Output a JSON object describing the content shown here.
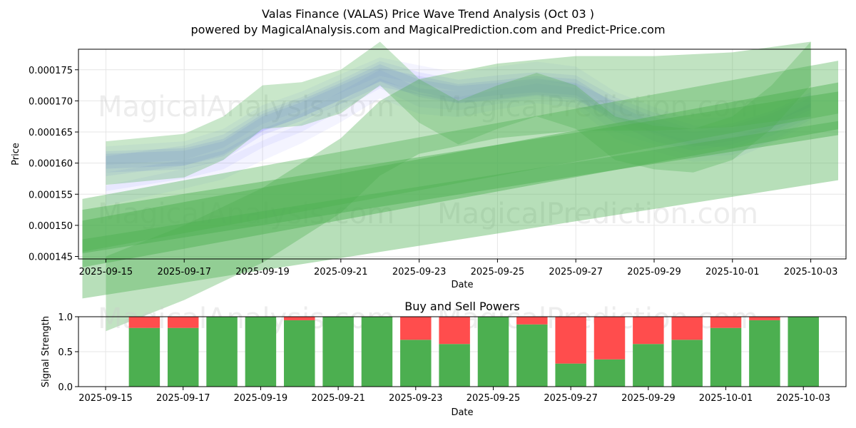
{
  "figure": {
    "title_line1": "Valas Finance (VALAS) Price Wave Trend Analysis (Oct 03 )",
    "title_line2": "powered by MagicalAnalysis.com and MagicalPrediction.com and Predict-Price.com",
    "watermarks": [
      "MagicalAnalysis.com",
      "MagicalPrediction.com"
    ]
  },
  "colors": {
    "blue_band": "#6666ff",
    "green_band": "#4caf50",
    "buy": "#4caf50",
    "sell": "#ff4d4d",
    "grid": "#e6e6e6"
  },
  "chart_data": [
    {
      "type": "line",
      "title": "Valas Finance (VALAS) Price Wave Trend Analysis (Oct 03 )",
      "xlabel": "Date",
      "ylabel": "Price",
      "x_tick_labels": [
        "2025-09-15",
        "2025-09-17",
        "2025-09-19",
        "2025-09-21",
        "2025-09-23",
        "2025-09-25",
        "2025-09-27",
        "2025-09-29",
        "2025-10-01",
        "2025-10-03"
      ],
      "y_tick_labels": [
        "0.000145",
        "0.000150",
        "0.000155",
        "0.000160",
        "0.000165",
        "0.000170",
        "0.000175"
      ],
      "xlim_day": [
        -0.7,
        18.9
      ],
      "ylim": [
        0.0001446,
        0.0001783
      ],
      "grid": true,
      "series": [
        {
          "name": "blue-wave-1",
          "color": "#6666ff",
          "opacity": 0.12,
          "width_price": 2.8e-06,
          "points": [
            [
              0,
              0.0001605
            ],
            [
              2,
              0.000161
            ],
            [
              3,
              0.0001625
            ],
            [
              4,
              0.0001665
            ],
            [
              5,
              0.0001688
            ],
            [
              6,
              0.0001715
            ],
            [
              7,
              0.0001745
            ],
            [
              8,
              0.000172
            ],
            [
              9,
              0.000171
            ],
            [
              10,
              0.0001715
            ],
            [
              11,
              0.0001722
            ],
            [
              12,
              0.0001715
            ],
            [
              13,
              0.0001685
            ],
            [
              14,
              0.000166
            ],
            [
              15,
              0.000164
            ],
            [
              16,
              0.000165
            ],
            [
              17,
              0.000167
            ],
            [
              18,
              0.00017
            ]
          ]
        },
        {
          "name": "blue-wave-2",
          "color": "#6666ff",
          "opacity": 0.12,
          "width_price": 3e-06,
          "points": [
            [
              0,
              0.00016
            ],
            [
              2,
              0.0001605
            ],
            [
              3,
              0.000162
            ],
            [
              4,
              0.000166
            ],
            [
              5,
              0.0001683
            ],
            [
              6,
              0.000171
            ],
            [
              7,
              0.0001738
            ],
            [
              8,
              0.0001725
            ],
            [
              9,
              0.0001712
            ],
            [
              10,
              0.0001718
            ],
            [
              11,
              0.0001725
            ],
            [
              12,
              0.000172
            ],
            [
              13,
              0.000168
            ],
            [
              14,
              0.000165
            ],
            [
              15,
              0.0001635
            ],
            [
              16,
              0.0001645
            ],
            [
              17,
              0.0001665
            ],
            [
              18,
              0.0001695
            ]
          ]
        },
        {
          "name": "blue-wave-3",
          "color": "#6666ff",
          "opacity": 0.1,
          "width_price": 3.2e-06,
          "points": [
            [
              0,
              0.0001595
            ],
            [
              2,
              0.0001612
            ],
            [
              3,
              0.000163
            ],
            [
              4,
              0.0001668
            ],
            [
              5,
              0.000169
            ],
            [
              6,
              0.0001718
            ],
            [
              7,
              0.0001748
            ],
            [
              8,
              0.000173
            ],
            [
              9,
              0.0001718
            ],
            [
              10,
              0.0001725
            ],
            [
              11,
              0.000173
            ],
            [
              12,
              0.0001725
            ],
            [
              13,
              0.000169
            ],
            [
              14,
              0.0001665
            ],
            [
              15,
              0.0001645
            ],
            [
              16,
              0.000164
            ],
            [
              17,
              0.000166
            ],
            [
              18,
              0.000169
            ]
          ]
        },
        {
          "name": "blue-wave-4",
          "color": "#6666ff",
          "opacity": 0.08,
          "width_price": 3e-06,
          "points": [
            [
              0,
              0.000157
            ],
            [
              2,
              0.000159
            ],
            [
              3,
              0.0001605
            ],
            [
              4,
              0.000164
            ],
            [
              5,
              0.0001665
            ],
            [
              6,
              0.00017
            ],
            [
              7,
              0.0001735
            ],
            [
              8,
              0.0001705
            ],
            [
              9,
              0.00017
            ],
            [
              10,
              0.000171
            ],
            [
              11,
              0.0001718
            ],
            [
              12,
              0.0001712
            ],
            [
              13,
              0.0001665
            ],
            [
              14,
              0.0001645
            ],
            [
              15,
              0.0001625
            ],
            [
              16,
              0.0001628
            ],
            [
              17,
              0.000165
            ],
            [
              18,
              0.0001685
            ]
          ]
        },
        {
          "name": "blue-wave-5",
          "color": "#6666ff",
          "opacity": 0.07,
          "width_price": 3.2e-06,
          "points": [
            [
              0,
              0.0001548
            ],
            [
              2,
              0.0001575
            ],
            [
              3,
              0.000159
            ],
            [
              4,
              0.000162
            ],
            [
              5,
              0.0001648
            ],
            [
              6,
              0.0001682
            ],
            [
              7,
              0.000172
            ],
            [
              8,
              0.0001695
            ],
            [
              9,
              0.000169
            ],
            [
              10,
              0.0001702
            ],
            [
              11,
              0.0001712
            ],
            [
              12,
              0.0001705
            ],
            [
              13,
              0.0001655
            ],
            [
              14,
              0.0001635
            ],
            [
              15,
              0.0001618
            ],
            [
              16,
              0.0001622
            ],
            [
              17,
              0.0001648
            ],
            [
              18,
              0.000168
            ]
          ]
        },
        {
          "name": "blue-wave-6",
          "color": "#6666ff",
          "opacity": 0.07,
          "width_price": 3e-06,
          "points": [
            [
              0,
              0.0001612
            ],
            [
              2,
              0.000162
            ],
            [
              3,
              0.000164
            ],
            [
              4,
              0.0001678
            ],
            [
              5,
              0.00017
            ],
            [
              6,
              0.0001728
            ],
            [
              7,
              0.0001755
            ],
            [
              8,
              0.0001742
            ],
            [
              9,
              0.000173
            ],
            [
              10,
              0.000174
            ],
            [
              11,
              0.0001748
            ],
            [
              12,
              0.000174
            ],
            [
              13,
              0.00017
            ],
            [
              14,
              0.0001675
            ],
            [
              15,
              0.0001655
            ],
            [
              16,
              0.000166
            ],
            [
              17,
              0.000168
            ],
            [
              18,
              0.0001705
            ]
          ]
        },
        {
          "name": "green-trend-1",
          "color": "#4caf50",
          "opacity": 0.45,
          "width_price": 7e-06,
          "points": [
            [
              -0.6,
              0.000149
            ],
            [
              18.7,
              0.000168
            ]
          ]
        },
        {
          "name": "green-trend-2",
          "color": "#4caf50",
          "opacity": 0.45,
          "width_price": 7.5e-06,
          "points": [
            [
              -0.6,
              0.000147
            ],
            [
              18.7,
              0.0001692
            ]
          ]
        },
        {
          "name": "green-trend-3",
          "color": "#4caf50",
          "opacity": 0.4,
          "width_price": 9.5e-06,
          "points": [
            [
              -0.6,
              0.000143
            ],
            [
              18.7,
              0.000162
            ]
          ]
        },
        {
          "name": "green-trend-4",
          "color": "#4caf50",
          "opacity": 0.38,
          "width_price": 8.5e-06,
          "points": [
            [
              -0.6,
              0.00015
            ],
            [
              18.7,
              0.0001722
            ]
          ]
        },
        {
          "name": "green-wave-1",
          "color": "#4caf50",
          "opacity": 0.3,
          "width_price": 7e-06,
          "points": [
            [
              0,
              0.00016
            ],
            [
              2,
              0.0001612
            ],
            [
              3,
              0.000164
            ],
            [
              4,
              0.000169
            ],
            [
              5,
              0.0001695
            ],
            [
              6,
              0.0001715
            ],
            [
              7,
              0.000176
            ],
            [
              8,
              0.00017
            ],
            [
              9,
              0.0001665
            ],
            [
              10,
              0.000169
            ],
            [
              11,
              0.000171
            ],
            [
              12,
              0.000169
            ],
            [
              13,
              0.000164
            ],
            [
              14,
              0.0001625
            ],
            [
              15,
              0.000162
            ],
            [
              16,
              0.000164
            ],
            [
              17,
              0.000169
            ],
            [
              18,
              0.000176
            ]
          ]
        },
        {
          "name": "green-wave-2",
          "color": "#4caf50",
          "opacity": 0.35,
          "width_price": 1.2e-05,
          "points": [
            [
              0,
              0.000139
            ],
            [
              2,
              0.000144
            ],
            [
              4,
              0.00015
            ],
            [
              6,
              0.000158
            ],
            [
              7,
              0.000164
            ],
            [
              8,
              0.0001675
            ],
            [
              10,
              0.00017
            ],
            [
              12,
              0.0001712
            ],
            [
              14,
              0.0001712
            ],
            [
              16,
              0.0001718
            ],
            [
              18,
              0.0001735
            ]
          ]
        }
      ]
    },
    {
      "type": "bar",
      "title": "Buy and Sell Powers",
      "xlabel": "Date",
      "ylabel": "Signal Strength",
      "x_tick_labels": [
        "2025-09-15",
        "2025-09-17",
        "2025-09-19",
        "2025-09-21",
        "2025-09-23",
        "2025-09-25",
        "2025-09-27",
        "2025-09-29",
        "2025-10-01",
        "2025-10-03"
      ],
      "y_tick_labels": [
        "0.0",
        "0.5",
        "1.0"
      ],
      "xlim_day": [
        -0.7,
        19.1
      ],
      "ylim": [
        0,
        1
      ],
      "grid": true,
      "categories_day": [
        1,
        2,
        3,
        4,
        5,
        6,
        7,
        8,
        9,
        10,
        11,
        12,
        13,
        14,
        15,
        16,
        17,
        18
      ],
      "series": [
        {
          "name": "Buy",
          "color": "#4caf50",
          "values": [
            0.84,
            0.84,
            1.0,
            1.0,
            0.95,
            1.0,
            1.0,
            0.67,
            0.61,
            1.0,
            0.89,
            0.33,
            0.39,
            0.61,
            0.67,
            0.84,
            0.95,
            1.0
          ]
        },
        {
          "name": "Sell",
          "color": "#ff4d4d",
          "values": [
            0.16,
            0.16,
            0.0,
            0.0,
            0.05,
            0.0,
            0.0,
            0.33,
            0.39,
            0.0,
            0.11,
            0.67,
            0.61,
            0.39,
            0.33,
            0.16,
            0.05,
            0.0
          ]
        }
      ]
    }
  ]
}
